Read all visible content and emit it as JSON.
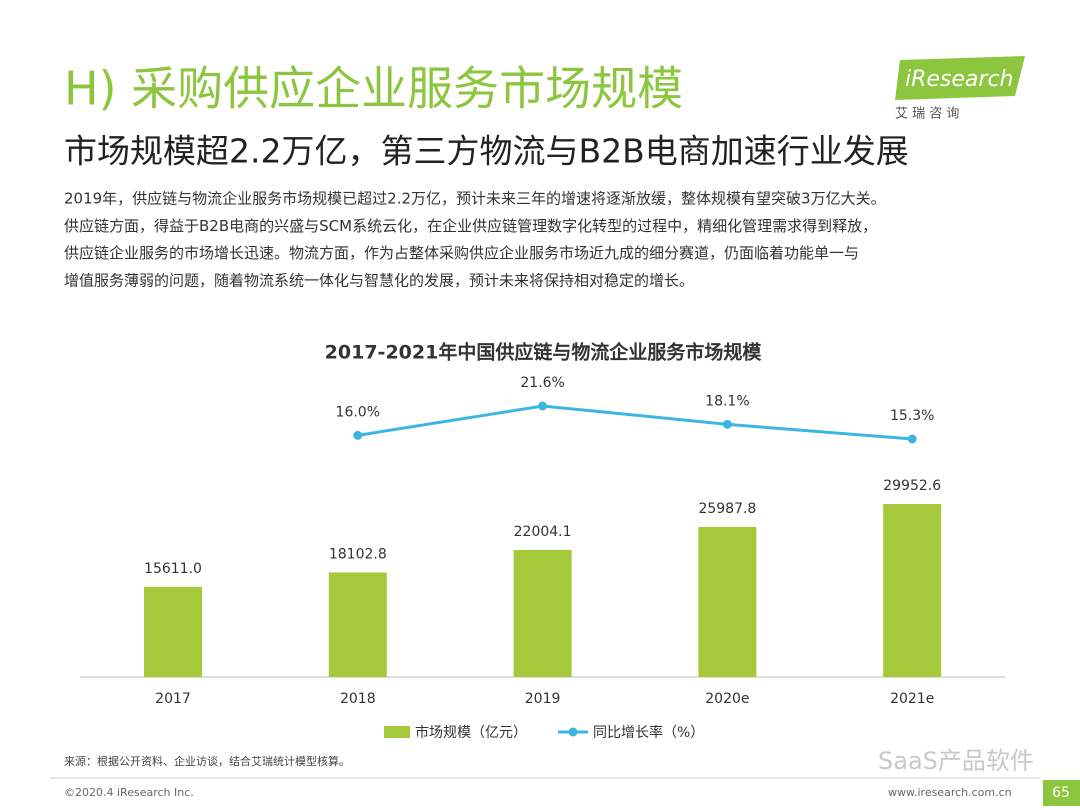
{
  "header": {
    "title": "H) 采购供应企业服务市场规模",
    "subtitle": "市场规模超2.2万亿，第三方物流与B2B电商加速行业发展",
    "logo": "iResearch",
    "logo_sub": "艾 瑞 咨 询"
  },
  "body": [
    "2019年，供应链与物流企业服务市场规模已超过2.2万亿，预计未来三年的增速将逐渐放缓，整体规模有望突破3万亿大关。",
    "供应链方面，得益于B2B电商的兴盛与SCM系统云化，在企业供应链管理数字化转型的过程中，精细化管理需求得到释放，",
    "供应链企业服务的市场增长迅速。物流方面，作为占整体采购供应企业服务市场近九成的细分赛道，仍面临着功能单一与",
    "增值服务薄弱的问题，随着物流系统一体化与智慧化的发展，预计未来将保持相对稳定的增长。"
  ],
  "chart_data": {
    "type": "bar",
    "title": "2017-2021年中国供应链与物流企业服务市场规模",
    "categories": [
      "2017",
      "2018",
      "2019",
      "2020e",
      "2021e"
    ],
    "series": [
      {
        "name": "市场规模（亿元）",
        "type": "bar",
        "color": "#a5c93a",
        "values": [
          15611.0,
          18102.8,
          22004.1,
          25987.8,
          29952.6
        ],
        "value_labels": [
          "15611.0",
          "18102.8",
          "22004.1",
          "25987.8",
          "29952.6"
        ]
      },
      {
        "name": "同比增长率（%）",
        "type": "line",
        "color": "#3db5e3",
        "axis": "y2",
        "values": [
          null,
          16.0,
          21.6,
          18.1,
          15.3
        ],
        "value_labels": [
          null,
          "16.0%",
          "21.6%",
          "18.1%",
          "15.3%"
        ]
      }
    ]
  },
  "footer": {
    "source": "来源：根据公开资料、企业访谈，结合艾瑞统计模型核算。",
    "copyright": "©2020.4 iResearch Inc.",
    "website": "www.iresearch.com.cn",
    "page": "65",
    "watermark": "SaaS产品软件"
  }
}
